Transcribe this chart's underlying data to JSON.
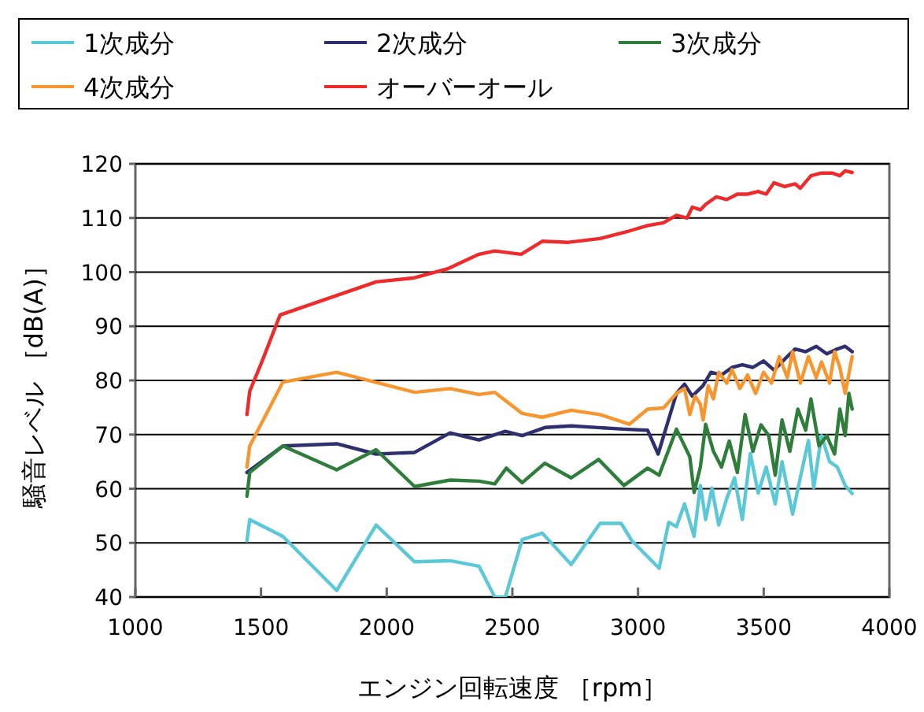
{
  "chart_data": {
    "type": "line",
    "xlabel": "エンジン回転速度 ［rpm］",
    "ylabel": "騒音レベル ［dB(A)］",
    "xlim": [
      1000,
      4000
    ],
    "xticks": [
      1000,
      1500,
      2000,
      2500,
      3000,
      3500,
      4000
    ],
    "ylim": [
      40,
      120
    ],
    "yticks": [
      40,
      50,
      60,
      70,
      80,
      90,
      100,
      110,
      120
    ],
    "grid": "y",
    "legend": "top",
    "marker": "none",
    "line_style": "solid",
    "series": [
      {
        "name": "1次成分",
        "color": "#5bc8d8",
        "x": [
          1444,
          1455,
          1587,
          1801,
          1958,
          2111,
          2252,
          2367,
          2430,
          2472,
          2539,
          2619,
          2734,
          2849,
          2933,
          2975,
          3084,
          3122,
          3153,
          3185,
          3223,
          3248,
          3269,
          3294,
          3321,
          3353,
          3384,
          3415,
          3447,
          3478,
          3510,
          3546,
          3573,
          3615,
          3646,
          3678,
          3699,
          3730,
          3762,
          3793,
          3824,
          3852
        ],
        "values": [
          50.4,
          54.3,
          51.2,
          41.2,
          53.3,
          46.5,
          46.7,
          45.7,
          40,
          40,
          50.6,
          51.8,
          46.0,
          53.6,
          53.6,
          50.4,
          45.3,
          53.8,
          53.0,
          57.2,
          51.2,
          60.6,
          54.3,
          60.1,
          53.3,
          58.2,
          62.0,
          54.3,
          66.5,
          59.2,
          64.0,
          57.2,
          65.0,
          55.3,
          62.1,
          68.9,
          60.2,
          69.8,
          65.0,
          64.0,
          60.6,
          59.1
        ]
      },
      {
        "name": "2次成分",
        "color": "#2e2f6e",
        "x": [
          1444,
          1587,
          1801,
          1958,
          2111,
          2252,
          2367,
          2472,
          2539,
          2629,
          2734,
          2944,
          3038,
          3080,
          3153,
          3185,
          3216,
          3258,
          3290,
          3332,
          3374,
          3415,
          3457,
          3499,
          3541,
          3583,
          3625,
          3667,
          3709,
          3751,
          3793,
          3824,
          3852
        ],
        "values": [
          63.0,
          67.9,
          68.3,
          66.4,
          66.7,
          70.3,
          69.0,
          70.6,
          69.8,
          71.3,
          71.6,
          71.0,
          70.8,
          66.4,
          77.6,
          79.3,
          77.1,
          79.0,
          81.5,
          81.0,
          82.4,
          82.9,
          82.4,
          83.6,
          81.9,
          83.9,
          85.8,
          85.3,
          86.3,
          84.9,
          85.8,
          86.3,
          85.3
        ]
      },
      {
        "name": "3次成分",
        "color": "#2e7d3a",
        "x": [
          1444,
          1455,
          1587,
          1801,
          1958,
          2111,
          2252,
          2367,
          2430,
          2476,
          2539,
          2629,
          2734,
          2843,
          2944,
          3038,
          3084,
          3153,
          3206,
          3223,
          3248,
          3269,
          3300,
          3332,
          3363,
          3395,
          3426,
          3457,
          3489,
          3520,
          3546,
          3573,
          3604,
          3636,
          3667,
          3688,
          3720,
          3751,
          3782,
          3803,
          3824,
          3839,
          3852
        ],
        "values": [
          58.6,
          63.0,
          67.9,
          63.5,
          67.2,
          60.4,
          61.6,
          61.4,
          60.9,
          63.8,
          61.1,
          64.7,
          62.0,
          65.4,
          60.6,
          63.8,
          62.5,
          71.0,
          65.9,
          59.3,
          64.0,
          71.9,
          66.9,
          64.0,
          68.8,
          63.0,
          73.7,
          66.9,
          71.8,
          69.8,
          62.5,
          72.7,
          66.9,
          74.7,
          70.8,
          76.6,
          67.9,
          69.8,
          66.4,
          74.7,
          69.8,
          77.6,
          74.7
        ]
      },
      {
        "name": "4次成分",
        "color": "#f7962f",
        "x": [
          1444,
          1455,
          1587,
          1801,
          2111,
          2252,
          2367,
          2430,
          2539,
          2619,
          2734,
          2849,
          2965,
          3038,
          3101,
          3153,
          3185,
          3206,
          3227,
          3248,
          3259,
          3279,
          3300,
          3321,
          3353,
          3374,
          3405,
          3436,
          3468,
          3499,
          3531,
          3562,
          3594,
          3615,
          3646,
          3678,
          3709,
          3730,
          3762,
          3782,
          3803,
          3824,
          3852
        ],
        "values": [
          64.0,
          67.9,
          79.7,
          81.5,
          77.8,
          78.5,
          77.4,
          77.8,
          73.9,
          73.2,
          74.5,
          73.7,
          71.9,
          74.7,
          74.9,
          77.6,
          78.5,
          73.7,
          77.1,
          75.6,
          72.7,
          79.0,
          76.6,
          81.5,
          79.5,
          82.0,
          78.5,
          81.0,
          77.6,
          81.5,
          79.5,
          84.4,
          80.5,
          85.3,
          79.5,
          84.4,
          80.5,
          83.4,
          79.5,
          85.3,
          82.4,
          77.6,
          84.4
        ]
      },
      {
        "name": "オーバーオール",
        "color": "#ee2a2a",
        "x": [
          1444,
          1455,
          1503,
          1576,
          1958,
          2105,
          2241,
          2367,
          2430,
          2535,
          2619,
          2723,
          2849,
          2965,
          3038,
          3101,
          3153,
          3195,
          3216,
          3248,
          3269,
          3311,
          3353,
          3395,
          3436,
          3478,
          3510,
          3541,
          3583,
          3625,
          3646,
          3688,
          3730,
          3772,
          3803,
          3824,
          3852
        ],
        "values": [
          73.7,
          78,
          83.4,
          92.1,
          98.2,
          98.9,
          100.6,
          103.3,
          103.9,
          103.3,
          105.7,
          105.5,
          106.2,
          107.6,
          108.6,
          109.1,
          110.5,
          110,
          112,
          111.5,
          112.5,
          113.9,
          113.4,
          114.4,
          114.4,
          114.9,
          114.4,
          116.5,
          115.8,
          116.3,
          115.5,
          117.8,
          118.3,
          118.3,
          117.8,
          118.7,
          118.4
        ]
      }
    ]
  }
}
